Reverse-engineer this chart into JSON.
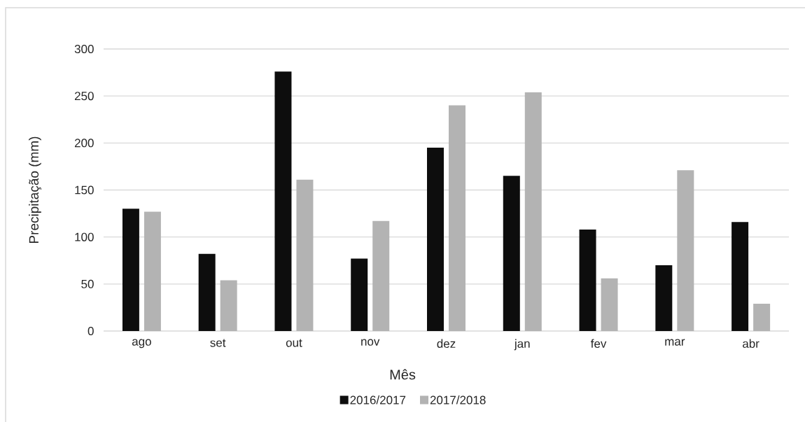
{
  "chart_data": {
    "type": "bar",
    "xlabel": "Mês",
    "ylabel": "Precipitação (mm)",
    "categories": [
      "ago",
      "set",
      "out",
      "nov",
      "dez",
      "jan",
      "fev",
      "mar",
      "abr"
    ],
    "series": [
      {
        "name": "2016/2017",
        "color": "#0d0d0d",
        "values": [
          130,
          82,
          276,
          77,
          195,
          165,
          108,
          70,
          116
        ]
      },
      {
        "name": "2017/2018",
        "color": "#b3b3b3",
        "values": [
          127,
          54,
          161,
          117,
          240,
          254,
          56,
          171,
          29
        ]
      }
    ],
    "ylim": [
      0,
      300
    ],
    "yticks": [
      0,
      50,
      100,
      150,
      200,
      250,
      300
    ],
    "grid": "y",
    "legend": "bottom"
  }
}
